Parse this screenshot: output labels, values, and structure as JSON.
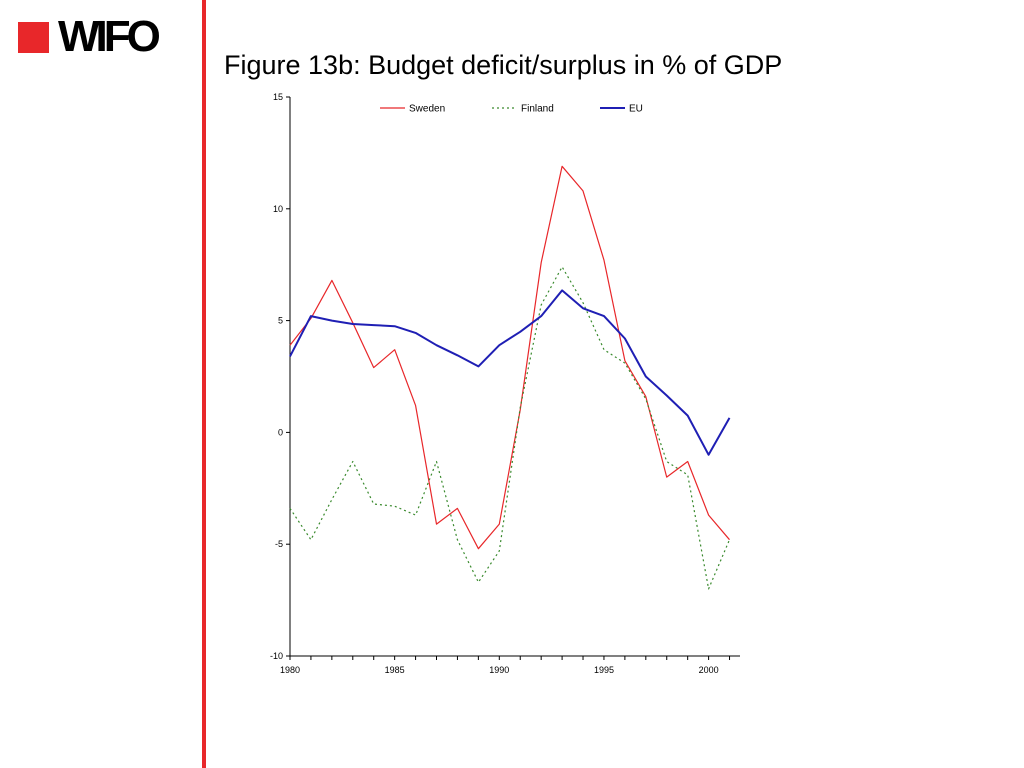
{
  "brand": {
    "logo_text": "WIFO",
    "accent_color": "#e8272a"
  },
  "slide": {
    "title": "Figure 13b: Budget deficit/surplus in % of GDP"
  },
  "chart_data": {
    "type": "line",
    "title": "",
    "xlabel": "",
    "ylabel": "",
    "x": [
      1980,
      1981,
      1982,
      1983,
      1984,
      1985,
      1986,
      1987,
      1988,
      1989,
      1990,
      1991,
      1992,
      1993,
      1994,
      1995,
      1996,
      1997,
      1998,
      1999,
      2000,
      2001
    ],
    "xlim": [
      1980,
      2001.5
    ],
    "ylim": [
      -10,
      15
    ],
    "x_ticks": [
      1980,
      1985,
      1990,
      1995,
      2000
    ],
    "y_ticks": [
      15,
      10,
      5,
      0,
      -5,
      -10
    ],
    "legend_position": "top",
    "grid": false,
    "series": [
      {
        "name": "Sweden",
        "color": "#e8272a",
        "style": "solid",
        "values": [
          3.9,
          5.1,
          6.8,
          4.9,
          2.9,
          3.7,
          1.2,
          -4.1,
          -3.4,
          -5.2,
          -4.1,
          1.0,
          7.6,
          11.9,
          10.8,
          7.7,
          3.2,
          1.6,
          -2.0,
          -1.3,
          -3.7,
          -4.8
        ]
      },
      {
        "name": "Finland",
        "color": "#3a8a2e",
        "style": "dotted",
        "values": [
          -3.4,
          -4.8,
          -3.0,
          -1.3,
          -3.2,
          -3.3,
          -3.7,
          -1.3,
          -4.8,
          -6.7,
          -5.3,
          1.1,
          5.7,
          7.4,
          5.8,
          3.7,
          3.1,
          1.5,
          -1.3,
          -1.9,
          -7.0,
          -4.8
        ]
      },
      {
        "name": "EU",
        "color": "#1f1fb4",
        "style": "solid",
        "values": [
          3.4,
          5.2,
          5.0,
          4.85,
          4.8,
          4.75,
          4.45,
          3.9,
          3.45,
          2.95,
          3.9,
          4.5,
          5.2,
          6.35,
          5.55,
          5.2,
          4.2,
          2.5,
          1.65,
          0.75,
          -1.0,
          0.65
        ]
      }
    ]
  }
}
